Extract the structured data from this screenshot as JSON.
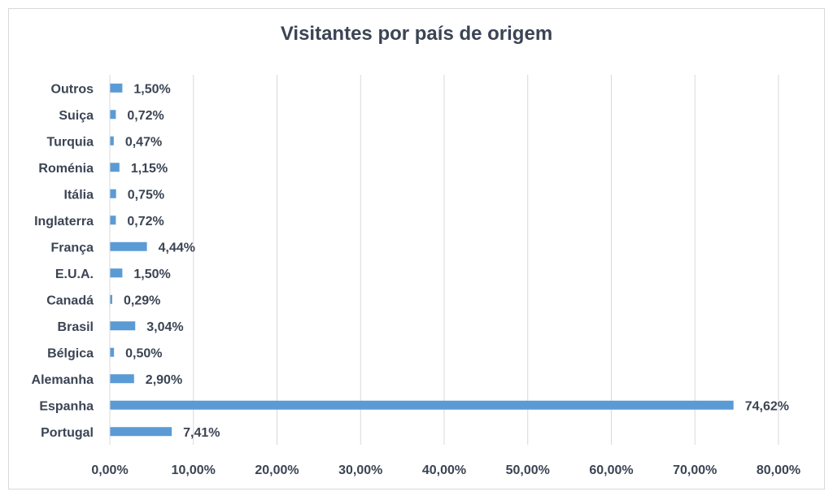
{
  "chart_data": {
    "type": "bar",
    "orientation": "horizontal",
    "title": "Visitantes por país de origem",
    "categories": [
      "Portugal",
      "Espanha",
      "Alemanha",
      "Bélgica",
      "Brasil",
      "Canadá",
      "E.U.A.",
      "França",
      "Inglaterra",
      "Itália",
      "Roménia",
      "Turquia",
      "Suiça",
      "Outros"
    ],
    "values": [
      7.41,
      74.62,
      2.9,
      0.5,
      3.04,
      0.29,
      1.5,
      4.44,
      0.72,
      0.75,
      1.15,
      0.47,
      0.72,
      1.5
    ],
    "value_labels": [
      "7,41%",
      "74,62%",
      "2,90%",
      "0,50%",
      "3,04%",
      "0,29%",
      "1,50%",
      "4,44%",
      "0,72%",
      "0,75%",
      "1,15%",
      "0,47%",
      "0,72%",
      "1,50%"
    ],
    "xlim": [
      0,
      80
    ],
    "xticks": [
      "0,00%",
      "10,00%",
      "20,00%",
      "30,00%",
      "40,00%",
      "50,00%",
      "60,00%",
      "70,00%",
      "80,00%"
    ],
    "grid": "vertical",
    "legend": "none",
    "bar_color": "#5b9bd5",
    "grid_color": "#d9d9d9"
  }
}
